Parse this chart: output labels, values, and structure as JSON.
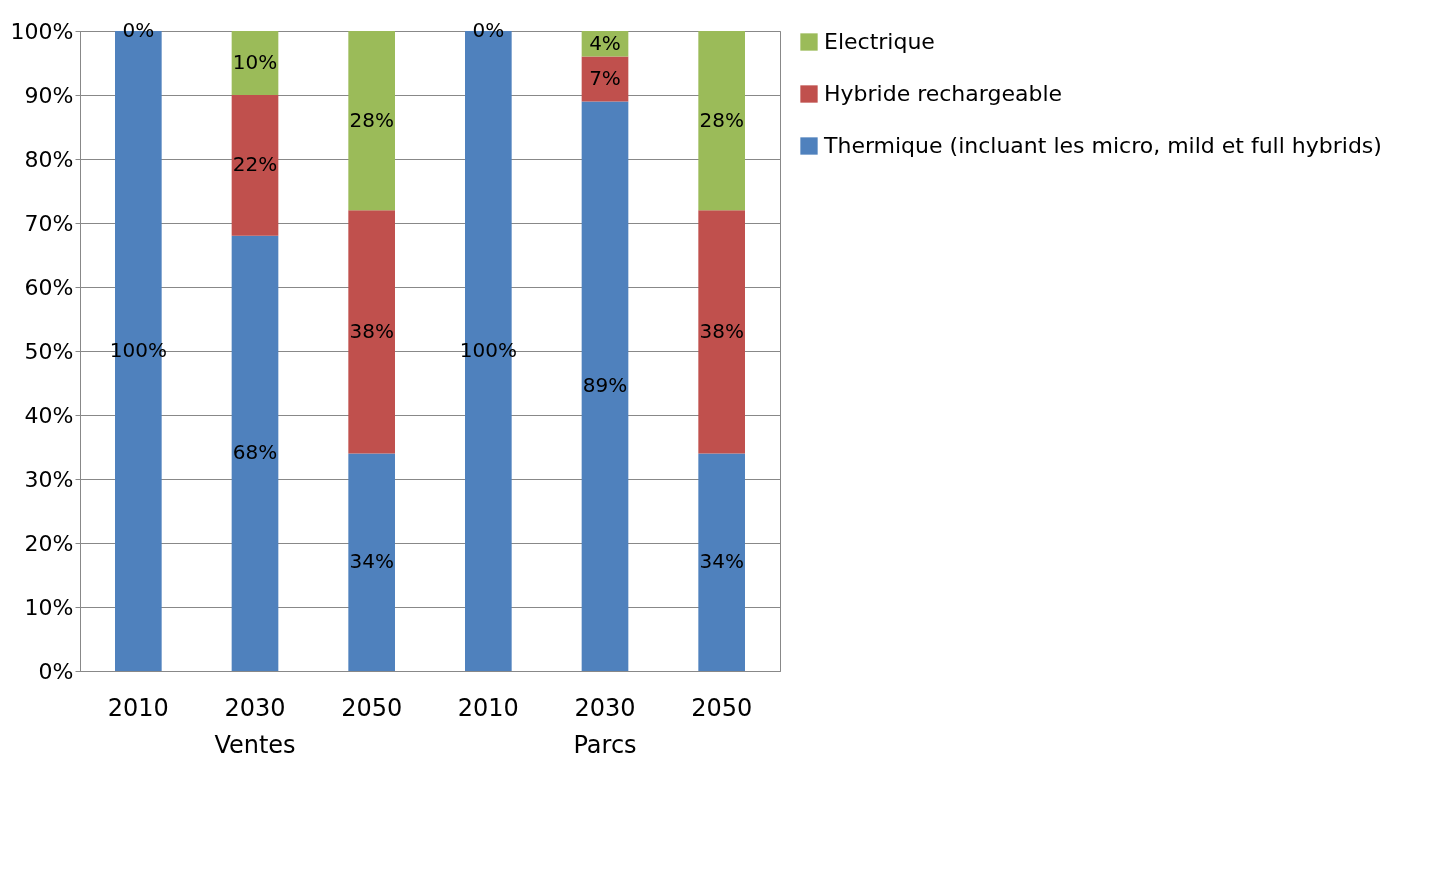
{
  "chart_data": {
    "type": "bar",
    "stacked": true,
    "categories": [
      "2010",
      "2030",
      "2050",
      "2010",
      "2030",
      "2050"
    ],
    "series": [
      {
        "name": "Thermique (incluant les micro, mild et full hybrids)",
        "color": "#4f81bd",
        "values": [
          100,
          68,
          34,
          100,
          89,
          34
        ],
        "value_labels": [
          "100%",
          "68%",
          "34%",
          "100%",
          "89%",
          "34%"
        ]
      },
      {
        "name": "Hybride rechargeable",
        "color": "#c0504d",
        "values": [
          0,
          22,
          38,
          0,
          7,
          38
        ],
        "value_labels": [
          null,
          "22%",
          "38%",
          null,
          "7%",
          "38%"
        ]
      },
      {
        "name": "Electrique",
        "color": "#9bbb59",
        "values": [
          0,
          10,
          28,
          0,
          4,
          28
        ],
        "value_labels": [
          "0%",
          "10%",
          "28%",
          "0%",
          "4%",
          "28%"
        ]
      }
    ],
    "ylim": [
      0,
      100
    ],
    "yticks": [
      {
        "value": 0,
        "label": "0%"
      },
      {
        "value": 10,
        "label": "10%"
      },
      {
        "value": 20,
        "label": "20%"
      },
      {
        "value": 30,
        "label": "30%"
      },
      {
        "value": 40,
        "label": "40%"
      },
      {
        "value": 50,
        "label": "50%"
      },
      {
        "value": 60,
        "label": "60%"
      },
      {
        "value": 70,
        "label": "70%"
      },
      {
        "value": 80,
        "label": "80%"
      },
      {
        "value": 90,
        "label": "90%"
      },
      {
        "value": 100,
        "label": "100%"
      }
    ],
    "grid": "y",
    "legend": "right",
    "annotations": [
      "Ventes",
      "Parcs"
    ]
  }
}
